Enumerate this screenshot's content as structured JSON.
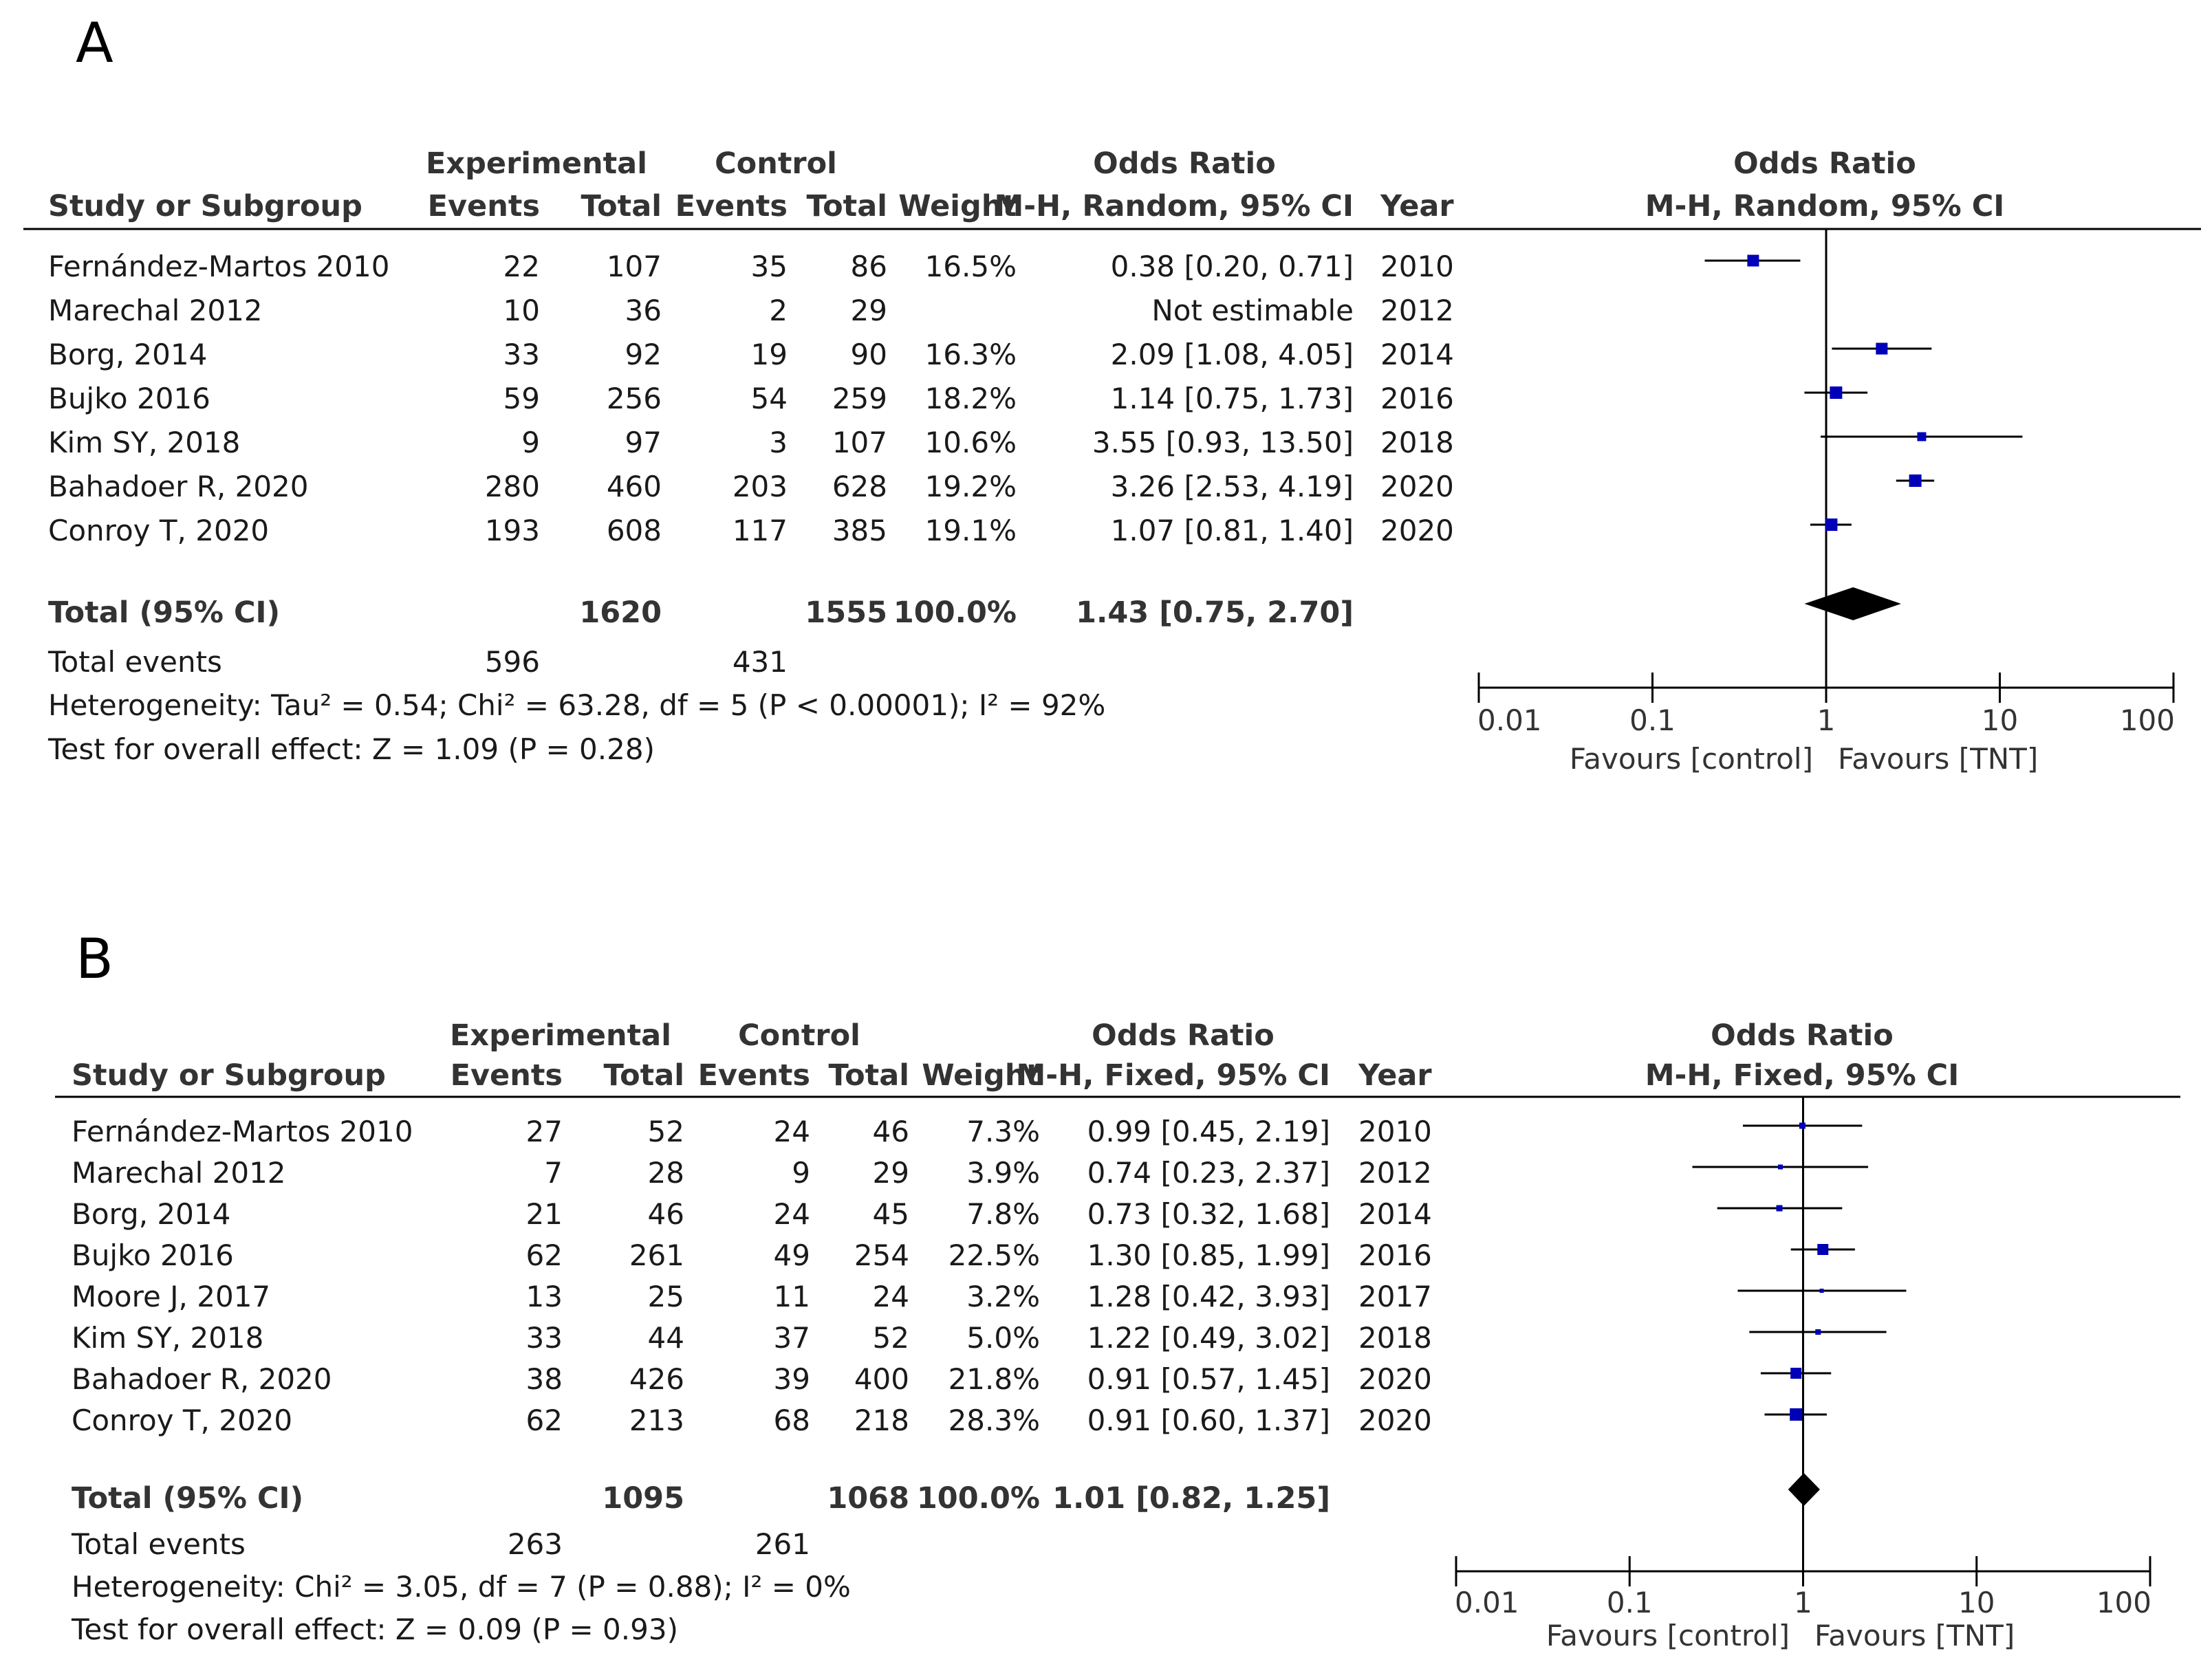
{
  "chart_data": [
    {
      "type": "forest",
      "panel_label": "A",
      "group_headers": {
        "experimental": "Experimental",
        "control": "Control",
        "odds_ratio": "Odds Ratio",
        "plot": "Odds Ratio"
      },
      "column_headers": {
        "study": "Study or Subgroup",
        "exp_events": "Events",
        "exp_total": "Total",
        "ctl_events": "Events",
        "ctl_total": "Total",
        "weight": "Weight",
        "ci": "M-H, Random, 95% CI",
        "year": "Year",
        "plot_sub": "M-H, Random, 95% CI"
      },
      "studies": [
        {
          "name": "Fernández-Martos 2010",
          "exp_events": "22",
          "exp_total": "107",
          "ctl_events": "35",
          "ctl_total": "86",
          "weight": "16.5%",
          "ci_text": "0.38 [0.20, 0.71]",
          "year": "2010",
          "or": 0.38,
          "lo": 0.2,
          "hi": 0.71
        },
        {
          "name": "Marechal 2012",
          "exp_events": "10",
          "exp_total": "36",
          "ctl_events": "2",
          "ctl_total": "29",
          "weight": "",
          "ci_text": "Not estimable",
          "year": "2012",
          "or": null,
          "lo": null,
          "hi": null
        },
        {
          "name": "Borg, 2014",
          "exp_events": "33",
          "exp_total": "92",
          "ctl_events": "19",
          "ctl_total": "90",
          "weight": "16.3%",
          "ci_text": "2.09 [1.08, 4.05]",
          "year": "2014",
          "or": 2.09,
          "lo": 1.08,
          "hi": 4.05
        },
        {
          "name": "Bujko 2016",
          "exp_events": "59",
          "exp_total": "256",
          "ctl_events": "54",
          "ctl_total": "259",
          "weight": "18.2%",
          "ci_text": "1.14 [0.75, 1.73]",
          "year": "2016",
          "or": 1.14,
          "lo": 0.75,
          "hi": 1.73
        },
        {
          "name": "Kim SY, 2018",
          "exp_events": "9",
          "exp_total": "97",
          "ctl_events": "3",
          "ctl_total": "107",
          "weight": "10.6%",
          "ci_text": "3.55 [0.93, 13.50]",
          "year": "2018",
          "or": 3.55,
          "lo": 0.93,
          "hi": 13.5
        },
        {
          "name": "Bahadoer R, 2020",
          "exp_events": "280",
          "exp_total": "460",
          "ctl_events": "203",
          "ctl_total": "628",
          "weight": "19.2%",
          "ci_text": "3.26 [2.53, 4.19]",
          "year": "2020",
          "or": 3.26,
          "lo": 2.53,
          "hi": 4.19
        },
        {
          "name": "Conroy T, 2020",
          "exp_events": "193",
          "exp_total": "608",
          "ctl_events": "117",
          "ctl_total": "385",
          "weight": "19.1%",
          "ci_text": "1.07 [0.81, 1.40]",
          "year": "2020",
          "or": 1.07,
          "lo": 0.81,
          "hi": 1.4
        }
      ],
      "total": {
        "label": "Total (95% CI)",
        "exp_total": "1620",
        "ctl_total": "1555",
        "weight": "100.0%",
        "ci_text": "1.43 [0.75, 2.70]",
        "or": 1.43,
        "lo": 0.75,
        "hi": 2.7
      },
      "total_events": {
        "label": "Total events",
        "exp": "596",
        "ctl": "431"
      },
      "heterogeneity": "Heterogeneity: Tau² = 0.54; Chi² = 63.28, df = 5 (P < 0.00001); I² = 92%",
      "overall_effect": "Test for overall effect: Z = 1.09 (P = 0.28)",
      "axis": {
        "scale": "log",
        "range": [
          0.01,
          100
        ],
        "ticks": [
          0.01,
          0.1,
          1,
          10,
          100
        ],
        "tick_labels": [
          "0.01",
          "0.1",
          "1",
          "10",
          "100"
        ],
        "favours_left": "Favours [control]",
        "favours_right": "Favours [TNT]"
      }
    },
    {
      "type": "forest",
      "panel_label": "B",
      "group_headers": {
        "experimental": "Experimental",
        "control": "Control",
        "odds_ratio": "Odds Ratio",
        "plot": "Odds Ratio"
      },
      "column_headers": {
        "study": "Study or Subgroup",
        "exp_events": "Events",
        "exp_total": "Total",
        "ctl_events": "Events",
        "ctl_total": "Total",
        "weight": "Weight",
        "ci": "M-H, Fixed, 95% CI",
        "year": "Year",
        "plot_sub": "M-H, Fixed, 95% CI"
      },
      "studies": [
        {
          "name": "Fernández-Martos 2010",
          "exp_events": "27",
          "exp_total": "52",
          "ctl_events": "24",
          "ctl_total": "46",
          "weight": "7.3%",
          "ci_text": "0.99 [0.45, 2.19]",
          "year": "2010",
          "or": 0.99,
          "lo": 0.45,
          "hi": 2.19
        },
        {
          "name": "Marechal 2012",
          "exp_events": "7",
          "exp_total": "28",
          "ctl_events": "9",
          "ctl_total": "29",
          "weight": "3.9%",
          "ci_text": "0.74 [0.23, 2.37]",
          "year": "2012",
          "or": 0.74,
          "lo": 0.23,
          "hi": 2.37
        },
        {
          "name": "Borg, 2014",
          "exp_events": "21",
          "exp_total": "46",
          "ctl_events": "24",
          "ctl_total": "45",
          "weight": "7.8%",
          "ci_text": "0.73 [0.32, 1.68]",
          "year": "2014",
          "or": 0.73,
          "lo": 0.32,
          "hi": 1.68
        },
        {
          "name": "Bujko 2016",
          "exp_events": "62",
          "exp_total": "261",
          "ctl_events": "49",
          "ctl_total": "254",
          "weight": "22.5%",
          "ci_text": "1.30 [0.85, 1.99]",
          "year": "2016",
          "or": 1.3,
          "lo": 0.85,
          "hi": 1.99
        },
        {
          "name": "Moore J, 2017",
          "exp_events": "13",
          "exp_total": "25",
          "ctl_events": "11",
          "ctl_total": "24",
          "weight": "3.2%",
          "ci_text": "1.28 [0.42, 3.93]",
          "year": "2017",
          "or": 1.28,
          "lo": 0.42,
          "hi": 3.93
        },
        {
          "name": "Kim SY, 2018",
          "exp_events": "33",
          "exp_total": "44",
          "ctl_events": "37",
          "ctl_total": "52",
          "weight": "5.0%",
          "ci_text": "1.22 [0.49, 3.02]",
          "year": "2018",
          "or": 1.22,
          "lo": 0.49,
          "hi": 3.02
        },
        {
          "name": "Bahadoer R, 2020",
          "exp_events": "38",
          "exp_total": "426",
          "ctl_events": "39",
          "ctl_total": "400",
          "weight": "21.8%",
          "ci_text": "0.91 [0.57, 1.45]",
          "year": "2020",
          "or": 0.91,
          "lo": 0.57,
          "hi": 1.45
        },
        {
          "name": "Conroy T, 2020",
          "exp_events": "62",
          "exp_total": "213",
          "ctl_events": "68",
          "ctl_total": "218",
          "weight": "28.3%",
          "ci_text": "0.91 [0.60, 1.37]",
          "year": "2020",
          "or": 0.91,
          "lo": 0.6,
          "hi": 1.37
        }
      ],
      "total": {
        "label": "Total (95% CI)",
        "exp_total": "1095",
        "ctl_total": "1068",
        "weight": "100.0%",
        "ci_text": "1.01 [0.82, 1.25]",
        "or": 1.01,
        "lo": 0.82,
        "hi": 1.25
      },
      "total_events": {
        "label": "Total events",
        "exp": "263",
        "ctl": "261"
      },
      "heterogeneity": "Heterogeneity: Chi² = 3.05, df = 7 (P = 0.88); I² = 0%",
      "overall_effect": "Test for overall effect: Z = 0.09 (P = 0.93)",
      "axis": {
        "scale": "log",
        "range": [
          0.01,
          100
        ],
        "ticks": [
          0.01,
          0.1,
          1,
          10,
          100
        ],
        "tick_labels": [
          "0.01",
          "0.1",
          "1",
          "10",
          "100"
        ],
        "favours_left": "Favours [control]",
        "favours_right": "Favours [TNT]"
      }
    }
  ],
  "colors": {
    "marker": "#0000b8",
    "line": "#000000",
    "text": "#1a1a1a",
    "header": "#333333"
  }
}
